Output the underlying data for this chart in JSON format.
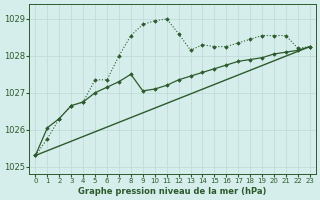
{
  "title": "Graphe pression niveau de la mer (hPa)",
  "bg_color": "#d5eeeb",
  "grid_color": "#c0dcd8",
  "line_color": "#2d5a2d",
  "xlim": [
    -0.5,
    23.5
  ],
  "ylim": [
    1024.8,
    1029.4
  ],
  "yticks": [
    1025,
    1026,
    1027,
    1028,
    1029
  ],
  "xticks": [
    0,
    1,
    2,
    3,
    4,
    5,
    6,
    7,
    8,
    9,
    10,
    11,
    12,
    13,
    14,
    15,
    16,
    17,
    18,
    19,
    20,
    21,
    22,
    23
  ],
  "series_dotted": [
    1025.3,
    1025.75,
    1026.3,
    1026.65,
    1026.75,
    1027.35,
    1027.35,
    1028.0,
    1028.55,
    1028.85,
    1028.95,
    1029.0,
    1028.6,
    1028.15,
    1028.3,
    1028.25,
    1028.25,
    1028.35,
    1028.45,
    1028.55,
    1028.55,
    1028.55,
    1028.2,
    1028.25
  ],
  "series_solid": [
    1025.3,
    1026.05,
    1026.3,
    1026.65,
    1026.75,
    1027.0,
    1027.15,
    1027.3,
    1027.5,
    1027.05,
    1027.1,
    1027.2,
    1027.35,
    1027.45,
    1027.55,
    1027.65,
    1027.75,
    1027.85,
    1027.9,
    1027.95,
    1028.05,
    1028.1,
    1028.15,
    1028.25
  ],
  "trend_x": [
    0,
    23
  ],
  "trend_y": [
    1025.3,
    1028.25
  ]
}
